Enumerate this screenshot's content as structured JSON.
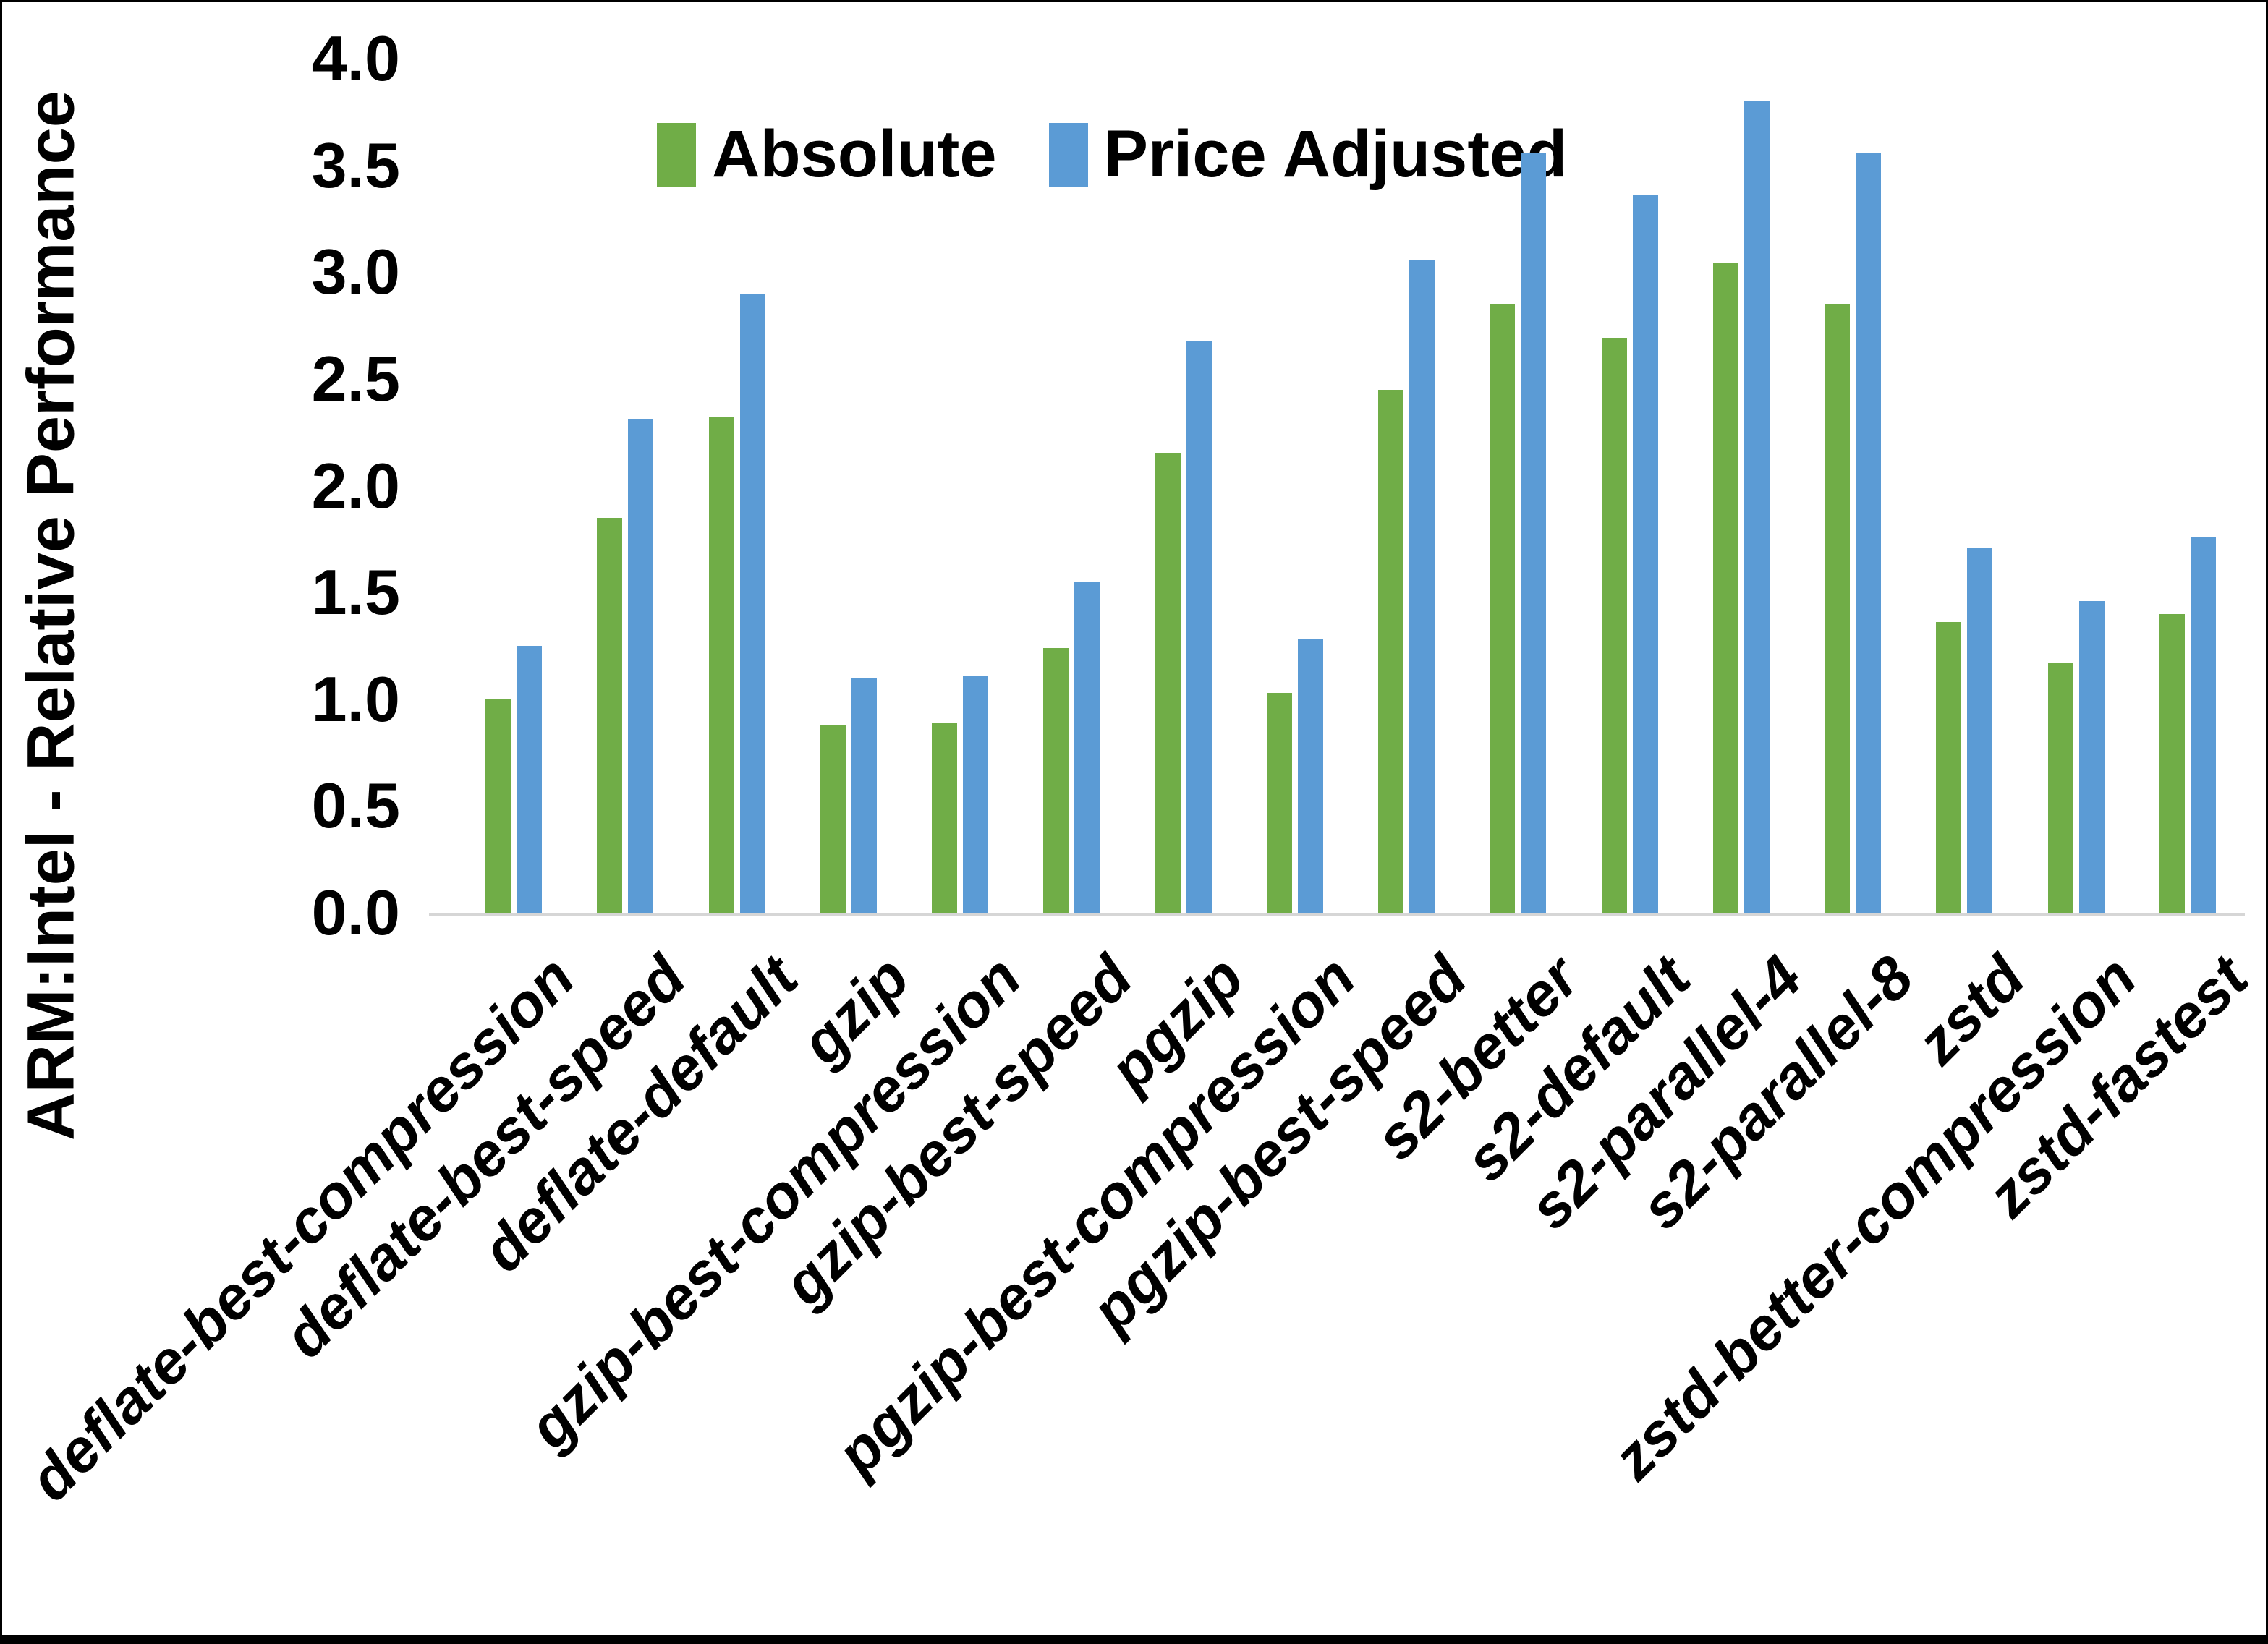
{
  "chart_data": {
    "type": "bar",
    "title": "",
    "ylabel": "ARM:Intel - Relative Performance",
    "xlabel": "",
    "ylim": [
      0.0,
      4.0
    ],
    "ytick_step": 0.5,
    "yticks": [
      "0.0",
      "0.5",
      "1.0",
      "1.5",
      "2.0",
      "2.5",
      "3.0",
      "3.5",
      "4.0"
    ],
    "grid": false,
    "legend_position": "top-center-inside",
    "background_color": "#FFFFFF",
    "axis_line_color": "#D6D6D6",
    "text_color": "#000000",
    "categories": [
      "deflate-best-compression",
      "deflate-best-speed",
      "deflate-default",
      "gzip",
      "gzip-best-compression",
      "gzip-best-speed",
      "pgzip",
      "pgzip-best-compression",
      "pgzip-best-speed",
      "s2-better",
      "s2-default",
      "s2-parallel-4",
      "s2-parallel-8",
      "zstd",
      "zstd-better-compression",
      "zstd-fastest"
    ],
    "series": [
      {
        "name": "Absolute",
        "color": "#70AD47",
        "values": [
          1.0,
          1.85,
          2.32,
          0.88,
          0.89,
          1.24,
          2.15,
          1.03,
          2.45,
          2.85,
          2.69,
          3.04,
          2.85,
          1.36,
          1.17,
          1.4
        ]
      },
      {
        "name": "Price Adjusted",
        "color": "#5B9BD5",
        "values": [
          1.25,
          2.31,
          2.9,
          1.1,
          1.11,
          1.55,
          2.68,
          1.28,
          3.06,
          3.56,
          3.36,
          3.8,
          3.56,
          1.71,
          1.46,
          1.76
        ]
      }
    ]
  }
}
